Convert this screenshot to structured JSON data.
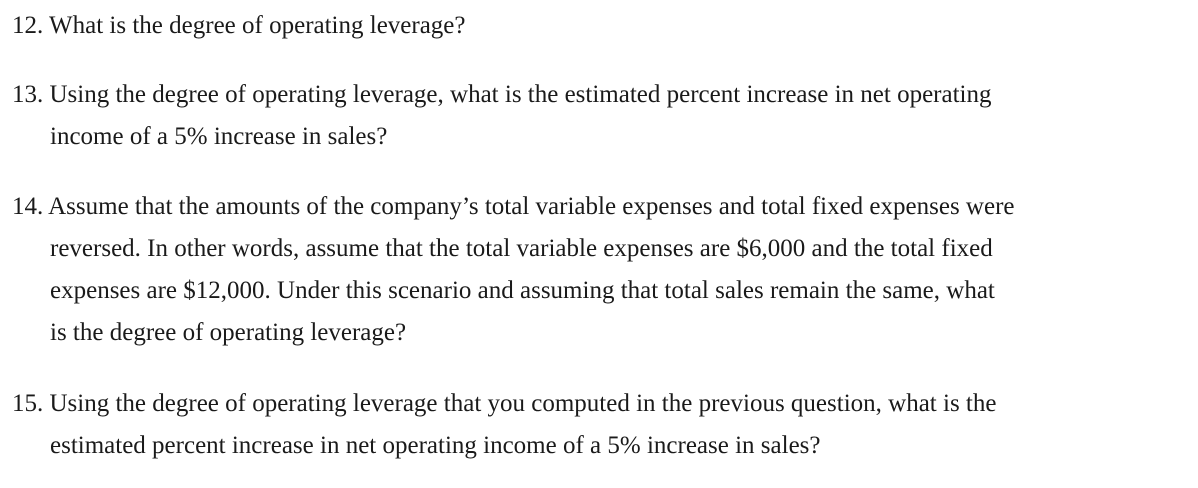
{
  "questions": [
    {
      "lines": [
        "12. What is the degree of operating leverage?"
      ]
    },
    {
      "lines": [
        "13. Using the degree of operating leverage, what is the estimated percent increase in net operating",
        "income of a 5% increase in sales?"
      ]
    },
    {
      "lines": [
        "14. Assume that the amounts of the company’s total variable expenses and total fixed expenses were",
        "reversed. In other words, assume that the total variable expenses are $6,000 and the total fixed",
        "expenses are $12,000. Under this scenario and assuming that total sales remain the same, what",
        "is the degree of operating leverage?"
      ]
    },
    {
      "lines": [
        "15. Using the degree of operating leverage that you computed in the previous question, what is the",
        "estimated percent increase in net operating income of a 5% increase in sales?"
      ]
    }
  ]
}
